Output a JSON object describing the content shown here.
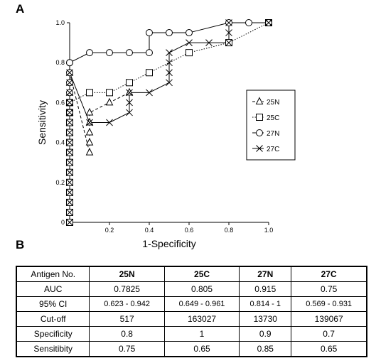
{
  "panels": {
    "a": "A",
    "b": "B"
  },
  "chart_data": {
    "type": "line",
    "xlabel": "1-Specificity",
    "ylabel": "Sensitivity",
    "xlim": [
      0,
      1
    ],
    "ylim": [
      0,
      1
    ],
    "x_ticks": [
      "0",
      "0.2",
      "0.4",
      "0.6",
      "0.8",
      "1.0"
    ],
    "y_ticks": [
      "0",
      "0.2",
      "0.4",
      "0.6",
      "0.8",
      "1.0"
    ],
    "legend_position": "right",
    "series": [
      {
        "name": "25N",
        "marker": "triangle",
        "line": "dashed",
        "x": [
          0,
          0,
          0,
          0,
          0,
          0,
          0,
          0,
          0,
          0,
          0,
          0,
          0,
          0,
          0,
          0,
          0.1,
          0.1,
          0.1,
          0.1,
          0.1,
          0.2,
          0.3
        ],
        "y": [
          0,
          0.05,
          0.1,
          0.15,
          0.2,
          0.25,
          0.3,
          0.35,
          0.4,
          0.45,
          0.5,
          0.55,
          0.6,
          0.65,
          0.7,
          0.75,
          0.35,
          0.4,
          0.45,
          0.5,
          0.55,
          0.6,
          0.65
        ]
      },
      {
        "name": "25C",
        "marker": "square",
        "line": "dotted",
        "x": [
          0,
          0,
          0,
          0,
          0,
          0,
          0,
          0,
          0,
          0,
          0,
          0,
          0,
          0.1,
          0.2,
          0.3,
          0.4,
          0.6,
          0.8,
          1.0
        ],
        "y": [
          0,
          0.05,
          0.1,
          0.15,
          0.2,
          0.25,
          0.3,
          0.35,
          0.4,
          0.45,
          0.5,
          0.55,
          0.6,
          0.65,
          0.65,
          0.7,
          0.75,
          0.85,
          0.9,
          1.0
        ]
      },
      {
        "name": "27N",
        "marker": "circle",
        "line": "solid",
        "x": [
          0,
          0,
          0,
          0,
          0,
          0,
          0,
          0.1,
          0.2,
          0.3,
          0.4,
          0.4,
          0.5,
          0.6,
          0.8,
          0.9,
          1.0
        ],
        "y": [
          0.55,
          0.6,
          0.65,
          0.7,
          0.75,
          0.8,
          0.8,
          0.85,
          0.85,
          0.85,
          0.85,
          0.95,
          0.95,
          0.95,
          1.0,
          1.0,
          1.0
        ]
      },
      {
        "name": "27C",
        "marker": "x",
        "line": "solid",
        "x": [
          0,
          0,
          0,
          0,
          0,
          0,
          0,
          0,
          0,
          0,
          0,
          0,
          0,
          0,
          0,
          0,
          0.1,
          0.2,
          0.3,
          0.3,
          0.3,
          0.4,
          0.5,
          0.5,
          0.5,
          0.5,
          0.6,
          0.7,
          0.8,
          0.8,
          0.8,
          1.0
        ],
        "y": [
          0,
          0.05,
          0.1,
          0.15,
          0.2,
          0.25,
          0.3,
          0.35,
          0.4,
          0.45,
          0.5,
          0.55,
          0.6,
          0.65,
          0.7,
          0.75,
          0.5,
          0.5,
          0.55,
          0.6,
          0.65,
          0.65,
          0.7,
          0.75,
          0.8,
          0.85,
          0.9,
          0.9,
          0.9,
          0.95,
          1.0,
          1.0
        ]
      }
    ]
  },
  "table": {
    "headers": [
      "Antigen No.",
      "25N",
      "25C",
      "27N",
      "27C"
    ],
    "rows": [
      [
        "AUC",
        "0.7825",
        "0.805",
        "0.915",
        "0.75"
      ],
      [
        "95% CI",
        "0.623 - 0.942",
        "0.649 - 0.961",
        "0.814 - 1",
        "0.569 - 0.931"
      ],
      [
        "Cut-off",
        "517",
        "163027",
        "13730",
        "139067"
      ],
      [
        "Specificity",
        "0.8",
        "1",
        "0.9",
        "0.7"
      ],
      [
        "Sensitibity",
        "0.75",
        "0.65",
        "0.85",
        "0.65"
      ]
    ]
  }
}
